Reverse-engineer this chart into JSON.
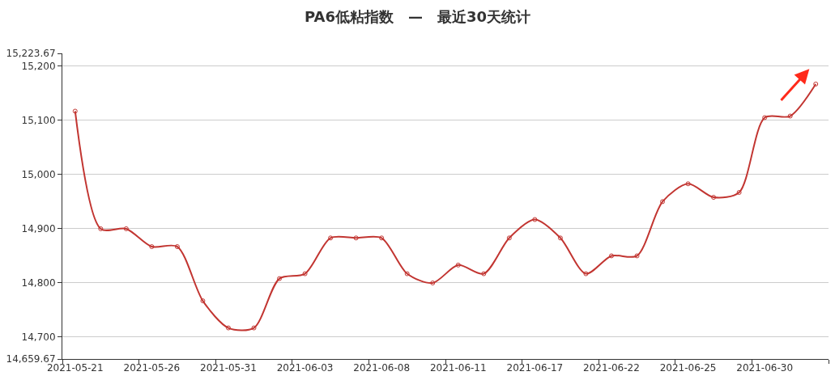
{
  "chart_data": {
    "type": "line",
    "title": "PA6低粘指数　—　最近30天统计",
    "categories": [
      "2021-05-21",
      null,
      null,
      "2021-05-26",
      null,
      null,
      "2021-05-31",
      null,
      null,
      "2021-06-03",
      null,
      null,
      "2021-06-08",
      null,
      null,
      "2021-06-11",
      null,
      null,
      "2021-06-17",
      null,
      null,
      "2021-06-22",
      null,
      null,
      "2021-06-25",
      null,
      null,
      "2021-06-30",
      null,
      null
    ],
    "series": [
      {
        "color": "#c23531",
        "values": [
          15117,
          14900,
          14900,
          14867,
          14867,
          14767,
          14717,
          14717,
          14808,
          14817,
          14883,
          14883,
          14883,
          14817,
          14800,
          14833,
          14817,
          14883,
          14917,
          14883,
          14817,
          14850,
          14850,
          14950,
          14983,
          14958,
          14967,
          15105,
          15108,
          15167
        ]
      }
    ],
    "ylim": [
      14659.67,
      15223.67
    ],
    "yticks": [
      {
        "value": 14659.67,
        "label": "14,659.67"
      },
      {
        "value": 14700,
        "label": "14,700"
      },
      {
        "value": 14800,
        "label": "14,800"
      },
      {
        "value": 14900,
        "label": "14,900"
      },
      {
        "value": 15000,
        "label": "15,000"
      },
      {
        "value": 15100,
        "label": "15,100"
      },
      {
        "value": 15200,
        "label": "15,200"
      },
      {
        "value": 15223.67,
        "label": "15,223.67"
      }
    ],
    "grid": "y",
    "marker": "circle",
    "line_style": "solid"
  }
}
